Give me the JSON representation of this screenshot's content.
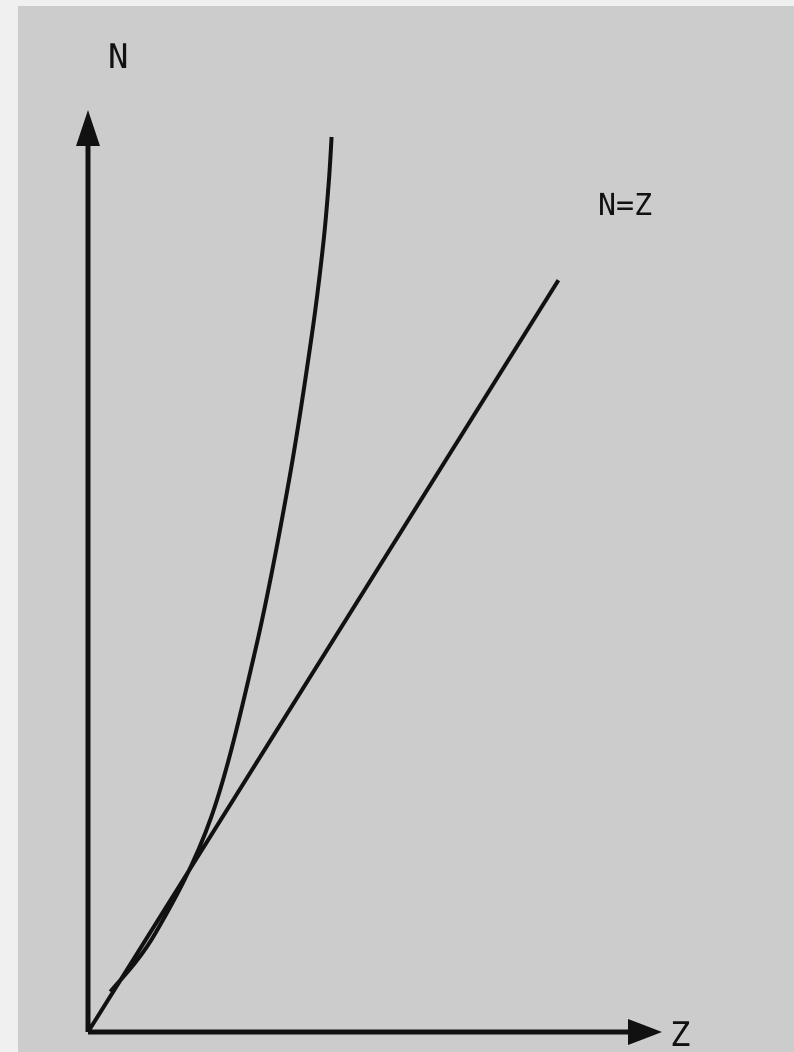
{
  "chart_data": {
    "type": "line",
    "title": "",
    "xlabel": "Z",
    "ylabel": "N",
    "xlim": [
      0,
      1
    ],
    "ylim": [
      0,
      1
    ],
    "grid": false,
    "legend": "none",
    "series": [
      {
        "name": "N=Z",
        "x": [
          0,
          0.84
        ],
        "y": [
          0,
          0.84
        ]
      },
      {
        "name": "",
        "x": [
          0.04,
          0.12,
          0.22,
          0.3,
          0.36,
          0.4,
          0.42,
          0.43,
          0.435
        ],
        "y": [
          0.045,
          0.11,
          0.24,
          0.43,
          0.62,
          0.78,
          0.88,
          0.95,
          1.0
        ]
      }
    ]
  },
  "colors": {
    "background": "#cccccc",
    "page": "#f0f0f0",
    "ink": "#111111"
  }
}
